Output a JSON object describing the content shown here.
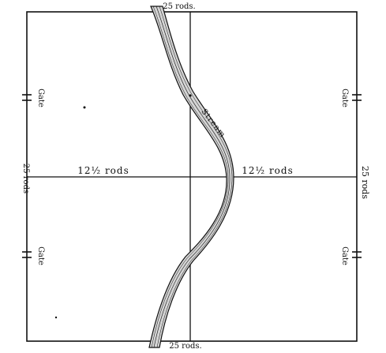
{
  "diagram": {
    "labels": {
      "top_dimension": "25 rods.",
      "bottom_dimension": "25 rods.",
      "left_dimension": "25 rods",
      "right_dimension": "25 rods",
      "half_left": "12½ rods",
      "half_right": "12½ rods",
      "stream": "Stream",
      "gate_upper_left": "Gate",
      "gate_lower_left": "Gate",
      "gate_upper_right": "Gate",
      "gate_lower_right": "Gate"
    },
    "colors": {
      "ink": "#111111",
      "background": "#ffffff"
    }
  }
}
